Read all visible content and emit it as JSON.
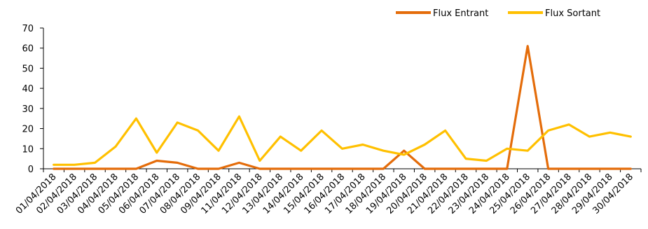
{
  "chart_data": {
    "type": "line",
    "title": "",
    "xlabel": "",
    "ylabel": "",
    "ylim": [
      0,
      70
    ],
    "yticks": [
      0,
      10,
      20,
      30,
      40,
      50,
      60,
      70
    ],
    "grid": false,
    "legend_position": "top-right",
    "categories": [
      "01/04/2018",
      "02/04/2018",
      "03/04/2018",
      "04/04/2018",
      "05/04/2018",
      "06/04/2018",
      "07/04/2018",
      "08/04/2018",
      "09/04/2018",
      "11/04/2018",
      "12/04/2018",
      "13/04/2018",
      "14/04/2018",
      "15/04/2018",
      "16/04/2018",
      "17/04/2018",
      "18/04/2018",
      "19/04/2018",
      "20/04/2018",
      "21/04/2018",
      "22/04/2018",
      "23/04/2018",
      "24/04/2018",
      "25/04/2018",
      "26/04/2018",
      "27/04/2018",
      "28/04/2018",
      "29/04/2018",
      "30/04/2018"
    ],
    "series": [
      {
        "name": "Flux Entrant",
        "color": "#E46C0A",
        "values": [
          0,
          0,
          0,
          0,
          0,
          4,
          3,
          0,
          0,
          3,
          0,
          0,
          0,
          0,
          0,
          0,
          0,
          9,
          0,
          0,
          0,
          0,
          0,
          61,
          0,
          0,
          0,
          0,
          0
        ]
      },
      {
        "name": "Flux Sortant",
        "color": "#FFC000",
        "values": [
          2,
          2,
          3,
          11,
          25,
          8,
          23,
          19,
          9,
          26,
          4,
          16,
          9,
          19,
          10,
          12,
          9,
          7,
          12,
          19,
          5,
          4,
          10,
          9,
          19,
          22,
          16,
          18,
          16
        ]
      }
    ]
  }
}
